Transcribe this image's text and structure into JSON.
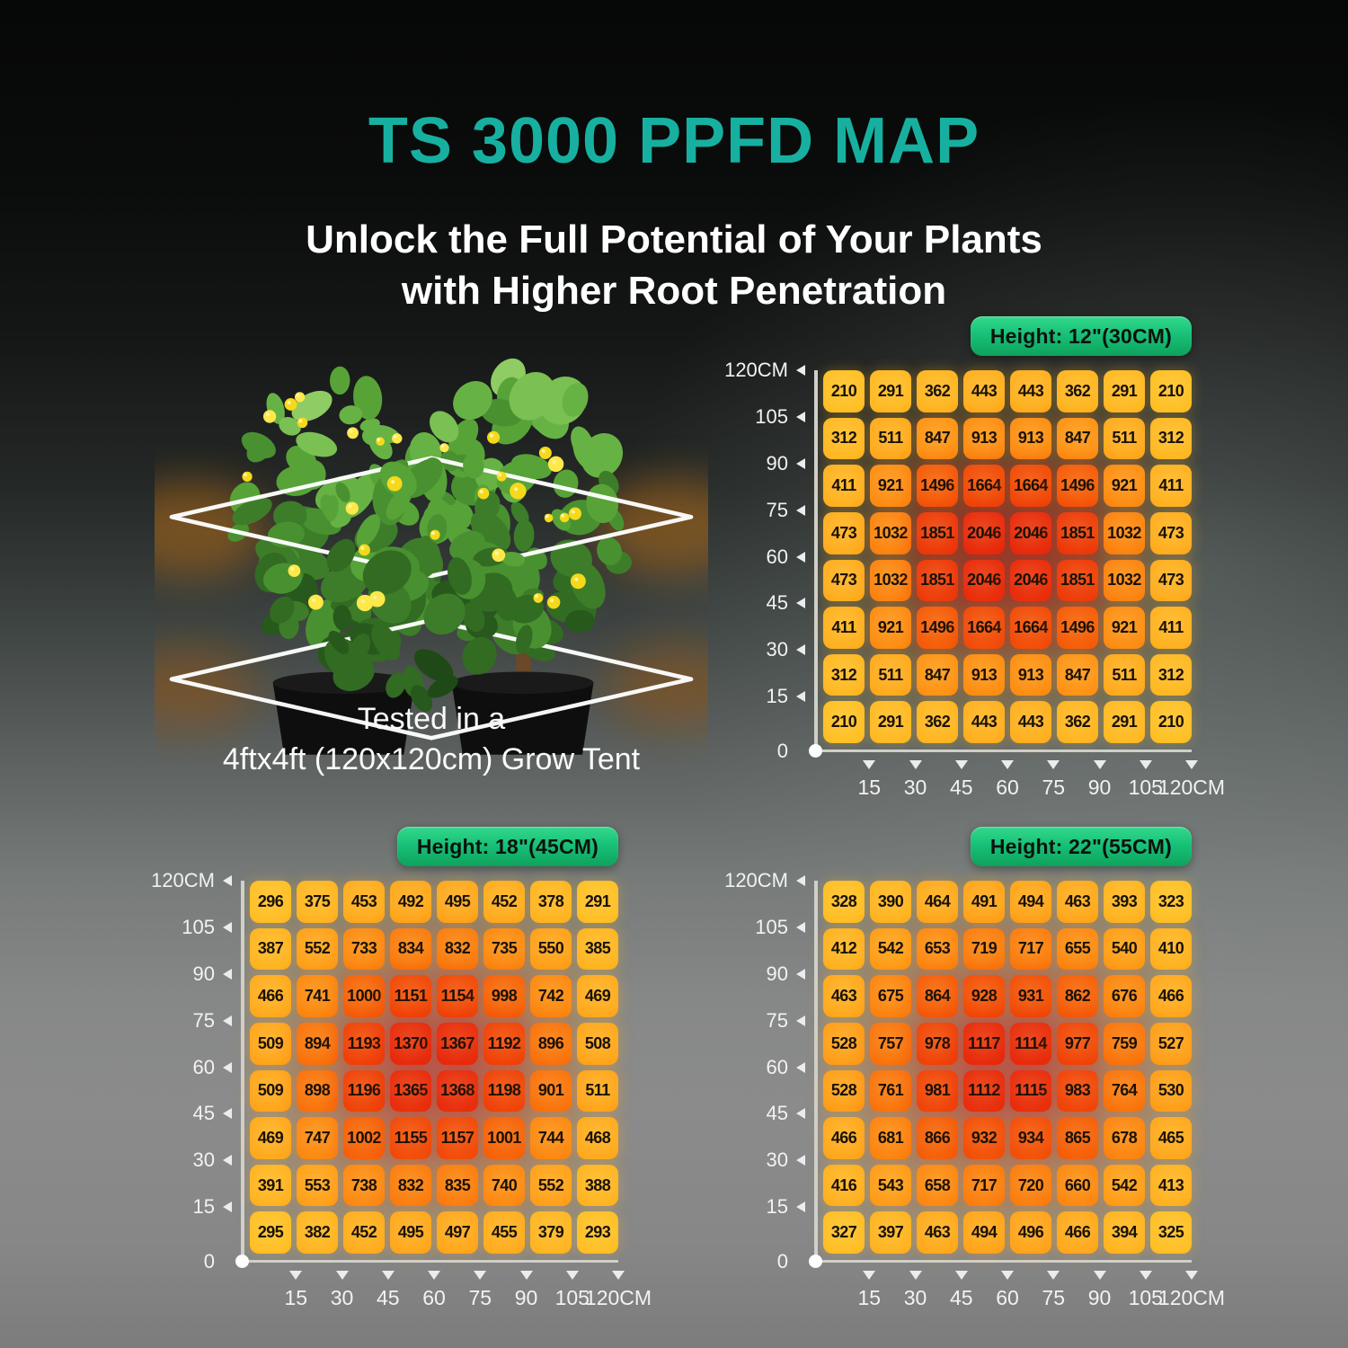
{
  "poster": {
    "title": "TS 3000 PPFD MAP",
    "subtitle_line1": "Unlock the Full Potential of Your Plants",
    "subtitle_line2": "with Higher Root Penetration",
    "plant_caption_line1": "Tested in a",
    "plant_caption_line2": "4ftx4ft (120x120cm) Grow Tent"
  },
  "colors": {
    "title_teal": "#17b0a0",
    "badge_green_top": "#33d98c",
    "badge_green_bottom": "#0ea25c",
    "axis": "#ced1d0",
    "label_text": "#f2f2f2",
    "cell_text": "#1a1106",
    "heat_stops": [
      [
        0.0,
        "#ffbf25"
      ],
      [
        0.16,
        "#ffab1e"
      ],
      [
        0.34,
        "#fe9315"
      ],
      [
        0.52,
        "#fa790e"
      ],
      [
        0.7,
        "#f55909"
      ],
      [
        0.85,
        "#ef3f0a"
      ],
      [
        1.0,
        "#e82b0e"
      ]
    ]
  },
  "chart_data": [
    {
      "type": "heatmap",
      "title": "Height: 12\"(30CM)",
      "x_ticks": [
        "15",
        "30",
        "45",
        "60",
        "75",
        "90",
        "105",
        "120CM"
      ],
      "y_ticks": [
        "120CM",
        "105",
        "90",
        "75",
        "60",
        "45",
        "30",
        "15",
        "0"
      ],
      "x_range_cm": [
        0,
        120
      ],
      "y_range_cm": [
        0,
        120
      ],
      "min": 210,
      "max": 2046,
      "values": [
        [
          210,
          291,
          362,
          443,
          443,
          362,
          291,
          210
        ],
        [
          312,
          511,
          847,
          913,
          913,
          847,
          511,
          312
        ],
        [
          411,
          921,
          1496,
          1664,
          1664,
          1496,
          921,
          411
        ],
        [
          473,
          1032,
          1851,
          2046,
          2046,
          1851,
          1032,
          473
        ],
        [
          473,
          1032,
          1851,
          2046,
          2046,
          1851,
          1032,
          473
        ],
        [
          411,
          921,
          1496,
          1664,
          1664,
          1496,
          921,
          411
        ],
        [
          312,
          511,
          847,
          913,
          913,
          847,
          511,
          312
        ],
        [
          210,
          291,
          362,
          443,
          443,
          362,
          291,
          210
        ]
      ]
    },
    {
      "type": "heatmap",
      "title": "Height: 18\"(45CM)",
      "x_ticks": [
        "15",
        "30",
        "45",
        "60",
        "75",
        "90",
        "105",
        "120CM"
      ],
      "y_ticks": [
        "120CM",
        "105",
        "90",
        "75",
        "60",
        "45",
        "30",
        "15",
        "0"
      ],
      "x_range_cm": [
        0,
        120
      ],
      "y_range_cm": [
        0,
        120
      ],
      "min": 291,
      "max": 1370,
      "values": [
        [
          296,
          375,
          453,
          492,
          495,
          452,
          378,
          291
        ],
        [
          387,
          552,
          733,
          834,
          832,
          735,
          550,
          385
        ],
        [
          466,
          741,
          1000,
          1151,
          1154,
          998,
          742,
          469
        ],
        [
          509,
          894,
          1193,
          1370,
          1367,
          1192,
          896,
          508
        ],
        [
          509,
          898,
          1196,
          1365,
          1368,
          1198,
          901,
          511
        ],
        [
          469,
          747,
          1002,
          1155,
          1157,
          1001,
          744,
          468
        ],
        [
          391,
          553,
          738,
          832,
          835,
          740,
          552,
          388
        ],
        [
          295,
          382,
          452,
          495,
          497,
          455,
          379,
          293
        ]
      ]
    },
    {
      "type": "heatmap",
      "title": "Height: 22\"(55CM)",
      "x_ticks": [
        "15",
        "30",
        "45",
        "60",
        "75",
        "90",
        "105",
        "120CM"
      ],
      "y_ticks": [
        "120CM",
        "105",
        "90",
        "75",
        "60",
        "45",
        "30",
        "15",
        "0"
      ],
      "x_range_cm": [
        0,
        120
      ],
      "y_range_cm": [
        0,
        120
      ],
      "min": 323,
      "max": 1117,
      "values": [
        [
          328,
          390,
          464,
          491,
          494,
          463,
          393,
          323
        ],
        [
          412,
          542,
          653,
          719,
          717,
          655,
          540,
          410
        ],
        [
          463,
          675,
          864,
          928,
          931,
          862,
          676,
          466
        ],
        [
          528,
          757,
          978,
          1117,
          1114,
          977,
          759,
          527
        ],
        [
          528,
          761,
          981,
          1112,
          1115,
          983,
          764,
          530
        ],
        [
          466,
          681,
          866,
          932,
          934,
          865,
          678,
          465
        ],
        [
          416,
          543,
          658,
          717,
          720,
          660,
          542,
          413
        ],
        [
          327,
          397,
          463,
          494,
          496,
          466,
          394,
          325
        ]
      ]
    }
  ]
}
